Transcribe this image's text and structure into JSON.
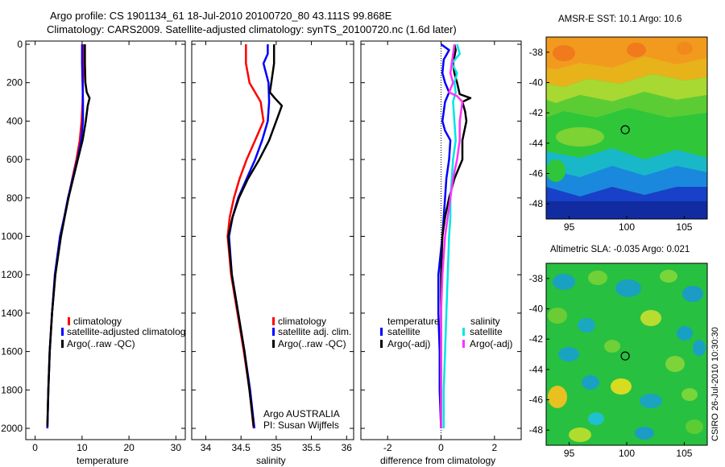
{
  "header": {
    "line1": "Argo profile: CS 1901134_61 18-Jul-2010 20100720_80 43.111S 99.868E",
    "line2": "Climatology: CARS2009. Satellite-adjusted climatology: synTS_20100720.nc (1.6d later)"
  },
  "depth_ticks": [
    "0",
    "200",
    "400",
    "600",
    "800",
    "1000",
    "1200",
    "1400",
    "1600",
    "1800",
    "2000"
  ],
  "chart_data": [
    {
      "type": "line",
      "panel": "temperature",
      "xlabel": "temperature",
      "xlim": [
        -2,
        32
      ],
      "ylim": [
        0,
        2050
      ],
      "xticks": [
        0,
        10,
        20,
        30
      ],
      "xtick_labels": [
        "0",
        "10",
        "20",
        "30"
      ],
      "legend": [
        "climatology",
        "satellite-adjusted climatolog",
        "Argo(..raw -QC)"
      ],
      "series": [
        {
          "name": "climatology",
          "color": "#ff0000",
          "depth": [
            0,
            100,
            200,
            300,
            400,
            500,
            600,
            700,
            800,
            900,
            1000,
            1200,
            1400,
            1600,
            1800,
            2000
          ],
          "values": [
            10.3,
            10.3,
            10.2,
            10.1,
            9.9,
            9.5,
            8.8,
            7.9,
            7.1,
            6.2,
            5.4,
            4.3,
            3.6,
            3.1,
            2.8,
            2.6
          ]
        },
        {
          "name": "satellite-adjusted climatology",
          "color": "#0000ff",
          "depth": [
            0,
            100,
            200,
            300,
            400,
            500,
            600,
            700,
            800,
            900,
            1000,
            1200,
            1400,
            1600,
            1800,
            2000
          ],
          "values": [
            10.0,
            10.0,
            10.1,
            10.2,
            10.2,
            9.8,
            9.0,
            8.0,
            7.0,
            6.2,
            5.3,
            4.2,
            3.6,
            3.1,
            2.8,
            2.6
          ]
        },
        {
          "name": "Argo(..raw -QC)",
          "color": "#000000",
          "depth": [
            0,
            100,
            200,
            250,
            280,
            320,
            400,
            500,
            600,
            700,
            800,
            900,
            1000,
            1200,
            1400,
            1600,
            1800,
            1990
          ],
          "values": [
            10.6,
            10.6,
            10.7,
            11.0,
            11.6,
            11.2,
            10.8,
            10.1,
            9.1,
            8.1,
            7.1,
            6.3,
            5.5,
            4.3,
            3.6,
            3.1,
            2.8,
            2.6
          ]
        }
      ]
    },
    {
      "type": "line",
      "panel": "salinity",
      "xlabel": "salinity",
      "xlim": [
        33.8,
        36.1
      ],
      "ylim": [
        0,
        2050
      ],
      "xticks": [
        34,
        34.5,
        35,
        35.5,
        36
      ],
      "xtick_labels": [
        "34",
        "34.5",
        "35",
        "35.5",
        "36"
      ],
      "legend": [
        "climatology",
        "satellite adj. clim.",
        "Argo(..raw -QC)"
      ],
      "annotation": [
        "Argo AUSTRALIA",
        "PI: Susan Wijffels"
      ],
      "series": [
        {
          "name": "climatology",
          "color": "#ff0000",
          "depth": [
            0,
            100,
            200,
            300,
            400,
            500,
            600,
            700,
            800,
            900,
            1000,
            1200,
            1400,
            1600,
            1800,
            2000
          ],
          "values": [
            34.57,
            34.57,
            34.62,
            34.78,
            34.82,
            34.7,
            34.58,
            34.48,
            34.4,
            34.34,
            34.31,
            34.36,
            34.45,
            34.54,
            34.62,
            34.68
          ]
        },
        {
          "name": "satellite adj. clim.",
          "color": "#0000ff",
          "depth": [
            0,
            50,
            100,
            200,
            300,
            400,
            500,
            600,
            700,
            800,
            900,
            1000,
            1200,
            1400,
            1600,
            1800,
            2000
          ],
          "values": [
            34.88,
            34.88,
            34.82,
            34.89,
            34.9,
            34.88,
            34.8,
            34.7,
            34.58,
            34.46,
            34.38,
            34.33,
            34.37,
            34.46,
            34.55,
            34.63,
            34.69
          ]
        },
        {
          "name": "Argo(..raw -QC)",
          "color": "#000000",
          "depth": [
            0,
            100,
            200,
            250,
            280,
            320,
            400,
            500,
            600,
            700,
            800,
            900,
            1000,
            1200,
            1400,
            1600,
            1800,
            1990
          ],
          "values": [
            34.97,
            34.97,
            34.93,
            34.91,
            34.98,
            35.08,
            35.0,
            34.9,
            34.76,
            34.6,
            34.47,
            34.38,
            34.32,
            34.37,
            34.46,
            34.55,
            34.62,
            34.68
          ]
        }
      ]
    },
    {
      "type": "line",
      "panel": "difference",
      "xlabel": "difference from climatology",
      "xlim": [
        -3,
        3
      ],
      "ylim": [
        0,
        2050
      ],
      "xticks": [
        -2,
        0,
        2
      ],
      "xtick_labels": [
        "-2",
        "0",
        "2"
      ],
      "legend_headers": [
        "temperature",
        "salinity"
      ],
      "legend": [
        "satellite",
        "Argo(-adj)",
        "satellite",
        "Argo(-adj)"
      ],
      "series": [
        {
          "name": "temperature satellite",
          "color": "#0000ff",
          "depth": [
            0,
            30,
            80,
            150,
            200,
            250,
            300,
            400,
            450,
            500,
            600,
            700,
            800,
            900,
            1000,
            1200,
            1400,
            1600,
            1800,
            2000
          ],
          "values": [
            0.0,
            0.3,
            0.1,
            0.05,
            0.15,
            0.3,
            0.15,
            0.05,
            0.15,
            0.35,
            0.3,
            0.2,
            0.15,
            0.1,
            0.05,
            -0.1,
            -0.1,
            -0.05,
            -0.05,
            0.0
          ]
        },
        {
          "name": "temperature Argo(-adj)",
          "color": "#000000",
          "depth": [
            0,
            30,
            100,
            150,
            200,
            260,
            280,
            300,
            350,
            400,
            500,
            600,
            700,
            800,
            900,
            1000,
            1200,
            1400,
            1600,
            1800,
            2000
          ],
          "values": [
            0.5,
            0.55,
            0.45,
            0.5,
            0.6,
            0.7,
            1.1,
            0.8,
            0.9,
            0.95,
            0.8,
            0.8,
            0.5,
            0.3,
            0.15,
            0.05,
            0.0,
            0.0,
            0.0,
            0.0,
            0.0
          ]
        },
        {
          "name": "salinity satellite",
          "color": "#00e5e5",
          "depth": [
            0,
            50,
            100,
            150,
            200,
            250,
            300,
            400,
            500,
            600,
            700,
            800,
            900,
            1000,
            1200,
            1400,
            1600,
            1800,
            2000
          ],
          "values": [
            0.6,
            0.7,
            0.4,
            0.6,
            0.5,
            0.55,
            0.45,
            0.5,
            0.55,
            0.45,
            0.4,
            0.35,
            0.35,
            0.3,
            0.25,
            0.2,
            0.15,
            0.1,
            0.1
          ]
        },
        {
          "name": "salinity Argo(-adj)",
          "color": "#ff33ff",
          "depth": [
            0,
            50,
            100,
            150,
            200,
            250,
            270,
            300,
            350,
            400,
            500,
            600,
            700,
            800,
            900,
            1000,
            1200,
            1400,
            1600,
            1800,
            2000
          ],
          "values": [
            0.5,
            0.45,
            0.4,
            0.35,
            0.45,
            0.3,
            0.6,
            0.8,
            0.75,
            0.7,
            0.7,
            0.6,
            0.45,
            0.35,
            0.25,
            0.15,
            0.05,
            0.0,
            0.0,
            0.0,
            0.0
          ]
        }
      ]
    },
    {
      "type": "heatmap",
      "panel": "sst_map",
      "title": "AMSR-E SST: 10.1 Argo: 10.6",
      "xlim": [
        93,
        107
      ],
      "ylim": [
        -49,
        -37
      ],
      "xticks": [
        95,
        100,
        105
      ],
      "yticks": [
        -38,
        -40,
        -42,
        -44,
        -46,
        -48
      ],
      "float_position": [
        99.868,
        -43.111
      ]
    },
    {
      "type": "heatmap",
      "panel": "sla_map",
      "title": "Altimetric SLA: -0.035 Argo: 0.021",
      "xlim": [
        93,
        107
      ],
      "ylim": [
        -49,
        -37
      ],
      "xticks": [
        95,
        100,
        105
      ],
      "yticks": [
        -38,
        -40,
        -42,
        -44,
        -46,
        -48
      ],
      "float_position": [
        99.868,
        -43.111
      ]
    }
  ],
  "footer": {
    "credit": "CSIRO 26-Jul-2010 10:30:30"
  },
  "colors": {
    "climatology": "#ff0000",
    "satellite": "#0000ff",
    "argo": "#000000",
    "sal_satellite": "#00e5e5",
    "sal_argo": "#ff33ff"
  }
}
